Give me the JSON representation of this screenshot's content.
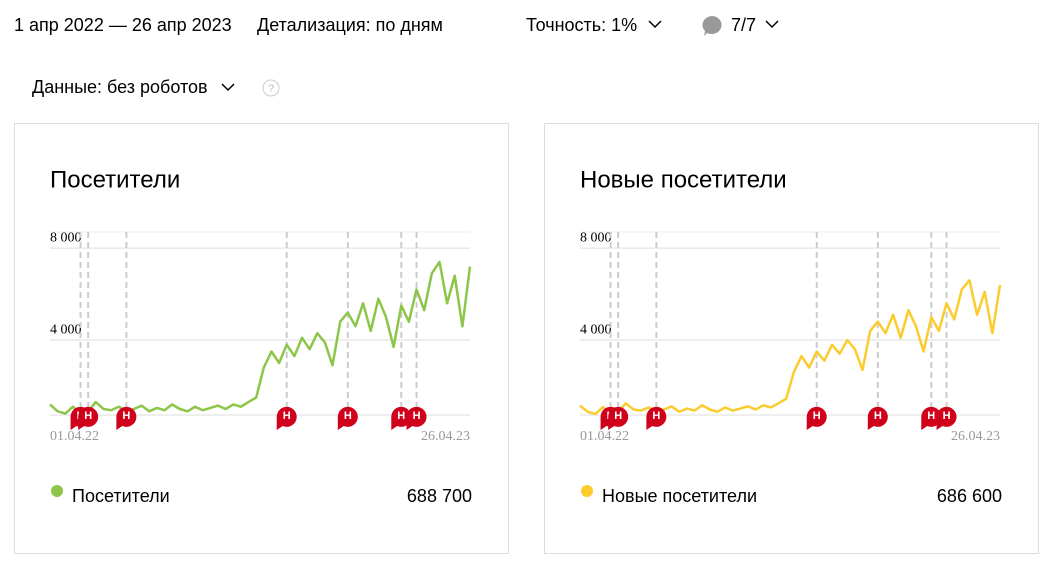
{
  "header": {
    "period": "1 апр 2022 — 26 апр 2023",
    "detail": "Детализация: по дням",
    "accuracy": "Точность: 1%",
    "segments": "7/7",
    "data_filter": "Данные: без роботов",
    "help": "?"
  },
  "chart_data": [
    {
      "type": "line",
      "title": "Посетители",
      "total": "688 700",
      "categories": [
        "01.04.22",
        null,
        null,
        null,
        null,
        null,
        null,
        null,
        null,
        null,
        null,
        null,
        null,
        null,
        null,
        null,
        null,
        null,
        null,
        null,
        null,
        null,
        null,
        null,
        null,
        null,
        null,
        null,
        null,
        null,
        null,
        null,
        null,
        null,
        null,
        null,
        null,
        null,
        null,
        null,
        null,
        null,
        null,
        null,
        null,
        null,
        null,
        null,
        null,
        null,
        null,
        null,
        null,
        null,
        null,
        "26.04.23"
      ],
      "series": [
        {
          "name": "Посетители",
          "color": "#8dc548",
          "values": [
            1200,
            900,
            800,
            1100,
            850,
            900,
            1300,
            1000,
            950,
            1100,
            900,
            1000,
            1150,
            900,
            1050,
            950,
            1200,
            1000,
            900,
            1100,
            950,
            1050,
            1150,
            1000,
            1200,
            1100,
            1300,
            1500,
            2800,
            3500,
            3000,
            3800,
            3300,
            4100,
            3600,
            4300,
            3900,
            2900,
            4800,
            5200,
            4600,
            5600,
            4400,
            5800,
            5000,
            3700,
            5500,
            4800,
            6200,
            5300,
            6900,
            7400,
            5600,
            6800,
            4600,
            7200
          ]
        }
      ],
      "ylim": [
        740,
        8700
      ],
      "yticks": [
        {
          "value": 4000,
          "label": "4 000"
        },
        {
          "value": 8000,
          "label": "8 000"
        }
      ],
      "grid": true,
      "annotations": [
        {
          "index": 4,
          "label": "Н"
        },
        {
          "index": 5,
          "label": "Н"
        },
        {
          "index": 10,
          "label": "Н"
        },
        {
          "index": 31,
          "label": "Н"
        },
        {
          "index": 39,
          "label": "Н"
        },
        {
          "index": 46,
          "label": "Н"
        },
        {
          "index": 48,
          "label": "Н"
        }
      ]
    },
    {
      "type": "line",
      "title": "Новые посетители",
      "total": "686 600",
      "categories": [
        "01.04.22",
        null,
        null,
        null,
        null,
        null,
        null,
        null,
        null,
        null,
        null,
        null,
        null,
        null,
        null,
        null,
        null,
        null,
        null,
        null,
        null,
        null,
        null,
        null,
        null,
        null,
        null,
        null,
        null,
        null,
        null,
        null,
        null,
        null,
        null,
        null,
        null,
        null,
        null,
        null,
        null,
        null,
        null,
        null,
        null,
        null,
        null,
        null,
        null,
        null,
        null,
        null,
        null,
        null,
        null,
        "26.04.23"
      ],
      "series": [
        {
          "name": "Новые посетители",
          "color": "#fccb2e",
          "values": [
            1150,
            880,
            790,
            1080,
            840,
            880,
            1250,
            980,
            930,
            1070,
            880,
            980,
            1120,
            880,
            1020,
            930,
            1160,
            980,
            880,
            1070,
            930,
            1020,
            1120,
            980,
            1160,
            1070,
            1250,
            1450,
            2600,
            3300,
            2800,
            3500,
            3100,
            3800,
            3400,
            4000,
            3600,
            2700,
            4400,
            4800,
            4300,
            5100,
            4100,
            5300,
            4600,
            3500,
            5000,
            4400,
            5600,
            4900,
            6200,
            6600,
            5100,
            6100,
            4300,
            6400
          ]
        }
      ],
      "ylim": [
        740,
        8700
      ],
      "yticks": [
        {
          "value": 4000,
          "label": "4 000"
        },
        {
          "value": 8000,
          "label": "8 000"
        }
      ],
      "grid": true,
      "annotations": [
        {
          "index": 4,
          "label": "Н"
        },
        {
          "index": 5,
          "label": "Н"
        },
        {
          "index": 10,
          "label": "Н"
        },
        {
          "index": 31,
          "label": "Н"
        },
        {
          "index": 39,
          "label": "Н"
        },
        {
          "index": 46,
          "label": "Н"
        },
        {
          "index": 48,
          "label": "Н"
        }
      ]
    }
  ]
}
